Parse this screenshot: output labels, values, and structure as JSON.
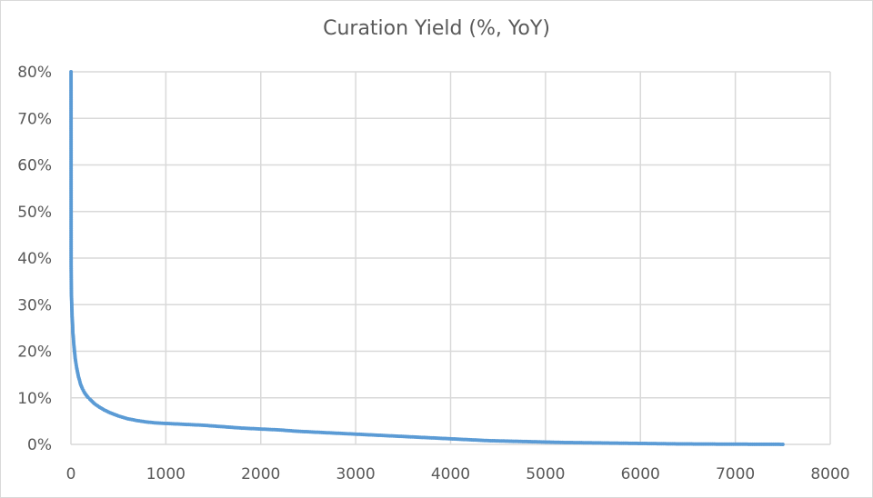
{
  "chart_data": {
    "type": "scatter",
    "title": "Curation Yield (%, YoY)",
    "xlabel": "",
    "ylabel": "",
    "xlim": [
      0,
      8000
    ],
    "ylim": [
      0,
      80
    ],
    "x_ticks": [
      "0",
      "1000",
      "2000",
      "3000",
      "4000",
      "5000",
      "6000",
      "7000",
      "8000"
    ],
    "y_ticks": [
      "0%",
      "10%",
      "20%",
      "30%",
      "40%",
      "50%",
      "60%",
      "70%",
      "80%"
    ],
    "grid": true,
    "legend": "none",
    "series_color": "#5b9bd5",
    "points": [
      [
        1,
        80
      ],
      [
        2,
        38.5
      ],
      [
        5,
        32
      ],
      [
        8,
        30.5
      ],
      [
        10,
        29
      ],
      [
        12,
        27.5
      ],
      [
        15,
        26.5
      ],
      [
        18,
        25.5
      ],
      [
        20,
        24
      ],
      [
        25,
        23
      ],
      [
        30,
        21.5
      ],
      [
        35,
        20.5
      ],
      [
        40,
        19.5
      ],
      [
        45,
        18.5
      ],
      [
        50,
        17.8
      ],
      [
        60,
        16.5
      ],
      [
        70,
        15.5
      ],
      [
        80,
        14.5
      ],
      [
        90,
        13.8
      ],
      [
        100,
        13
      ],
      [
        120,
        12
      ],
      [
        140,
        11.2
      ],
      [
        160,
        10.6
      ],
      [
        180,
        10.1
      ],
      [
        200,
        9.7
      ],
      [
        250,
        8.7
      ],
      [
        300,
        8
      ],
      [
        350,
        7.4
      ],
      [
        400,
        6.9
      ],
      [
        450,
        6.5
      ],
      [
        500,
        6.1
      ],
      [
        600,
        5.5
      ],
      [
        700,
        5.1
      ],
      [
        800,
        4.8
      ],
      [
        900,
        4.6
      ],
      [
        1000,
        4.5
      ],
      [
        1200,
        4.3
      ],
      [
        1400,
        4.1
      ],
      [
        1600,
        3.8
      ],
      [
        1800,
        3.5
      ],
      [
        2000,
        3.3
      ],
      [
        2200,
        3.1
      ],
      [
        2400,
        2.8
      ],
      [
        2600,
        2.6
      ],
      [
        2800,
        2.4
      ],
      [
        3000,
        2.2
      ],
      [
        3200,
        2.0
      ],
      [
        3400,
        1.8
      ],
      [
        3600,
        1.6
      ],
      [
        3800,
        1.4
      ],
      [
        4000,
        1.2
      ],
      [
        4200,
        1.0
      ],
      [
        4400,
        0.8
      ],
      [
        4600,
        0.7
      ],
      [
        4800,
        0.6
      ],
      [
        5000,
        0.5
      ],
      [
        5200,
        0.4
      ],
      [
        5400,
        0.35
      ],
      [
        5600,
        0.3
      ],
      [
        5800,
        0.25
      ],
      [
        6000,
        0.2
      ],
      [
        6200,
        0.15
      ],
      [
        6400,
        0.1
      ],
      [
        6600,
        0.08
      ],
      [
        6800,
        0.06
      ],
      [
        7000,
        0.05
      ],
      [
        7200,
        0.03
      ],
      [
        7400,
        0.02
      ],
      [
        7500,
        0.01
      ]
    ]
  }
}
